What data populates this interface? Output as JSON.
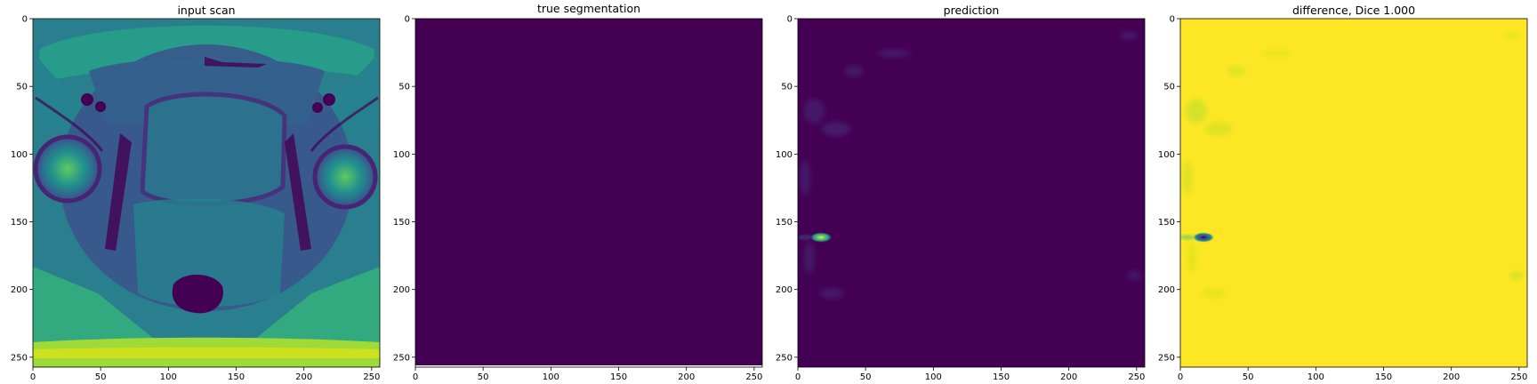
{
  "figure": {
    "panels": [
      {
        "title": "input scan",
        "image": "axial MRI pelvis scan, viridis colormap",
        "x_ticks": [
          "0",
          "50",
          "100",
          "150",
          "200",
          "250"
        ],
        "y_ticks": [
          "0",
          "50",
          "100",
          "150",
          "200",
          "250"
        ]
      },
      {
        "title": "true segmentation",
        "image": "uniform dark purple field",
        "x_ticks": [
          "0",
          "50",
          "100",
          "150",
          "200",
          "250"
        ],
        "y_ticks": [
          "0",
          "50",
          "100",
          "150",
          "200",
          "250"
        ]
      },
      {
        "title": "prediction",
        "image": "dark purple field with faint speckle and a small bright spot on left edge",
        "x_ticks": [
          "0",
          "50",
          "100",
          "150",
          "200",
          "250"
        ],
        "y_ticks": [
          "0",
          "50",
          "100",
          "150",
          "200",
          "250"
        ]
      },
      {
        "title": "difference, Dice 1.000",
        "image": "yellow field with faint green speckle and a dark spot on left edge",
        "x_ticks": [
          "0",
          "50",
          "100",
          "150",
          "200",
          "250"
        ],
        "y_ticks": [
          "0",
          "50",
          "100",
          "150",
          "200",
          "250"
        ]
      }
    ],
    "colors": {
      "viridis_dark": "#440154",
      "viridis_blue": "#3b528b",
      "viridis_teal": "#21918c",
      "viridis_green": "#5ec962",
      "viridis_yellow": "#fde725"
    }
  }
}
